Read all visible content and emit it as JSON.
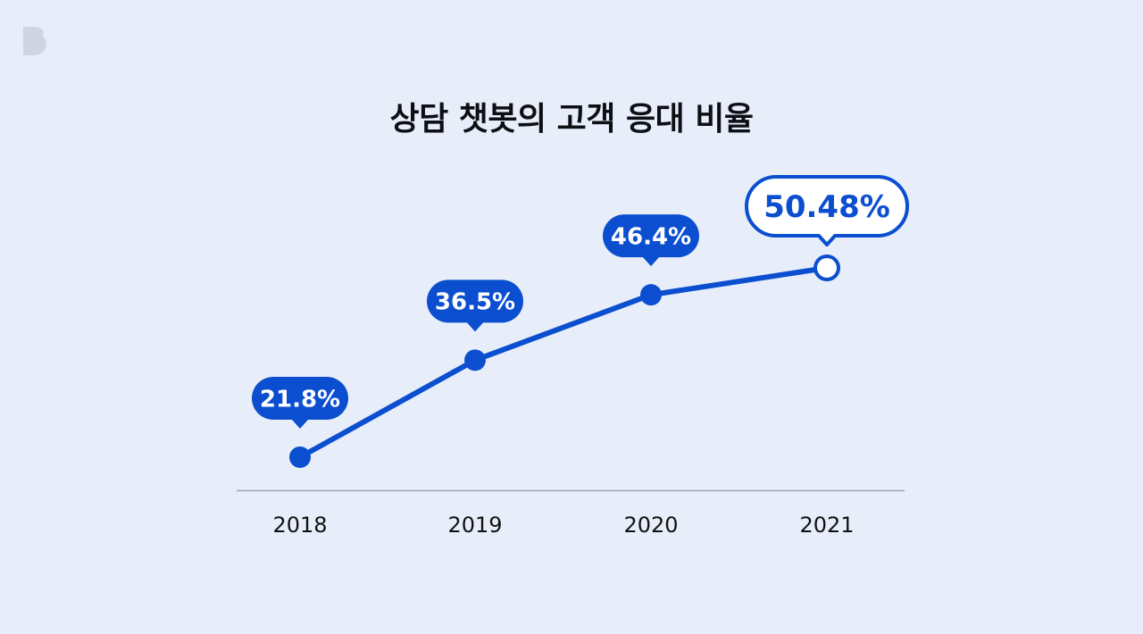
{
  "title": "상담 챗봇의 고객 응대 비율",
  "colors": {
    "background": "#e8eef9",
    "accent": "#0b4fd0",
    "axis": "#9aa3b1",
    "logo": "#cfd6e2",
    "bubble_text": "#ffffff"
  },
  "logo": {
    "icon": "b-logo-icon"
  },
  "chart_data": {
    "type": "line",
    "title": "상담 챗봇의 고객 응대 비율",
    "categories": [
      "2018",
      "2019",
      "2020",
      "2021"
    ],
    "values": [
      21.8,
      36.5,
      46.4,
      50.48
    ],
    "data_labels": [
      "21.8%",
      "36.5%",
      "46.4%",
      "50.48%"
    ],
    "highlight_index": 3,
    "xlabel": "",
    "ylabel": "",
    "grid": false,
    "legend": "none"
  }
}
